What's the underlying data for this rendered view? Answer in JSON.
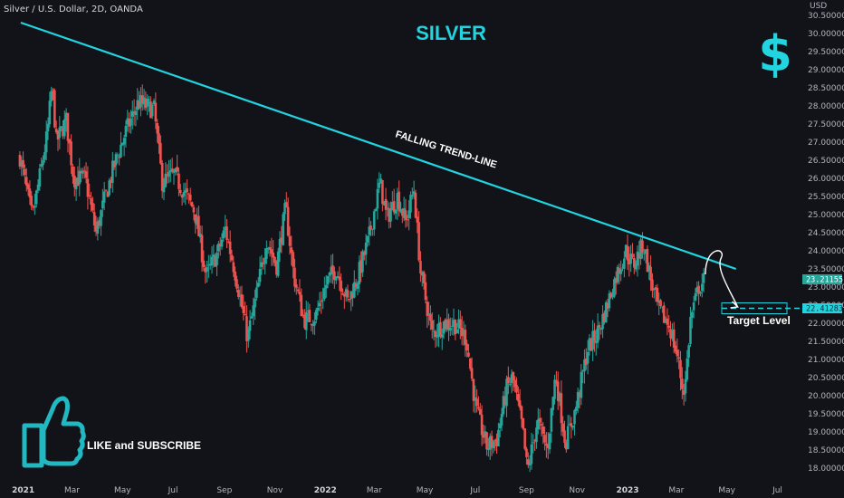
{
  "symbol": "Silver / U.S. Dollar, 2D, OANDA",
  "title": "SILVER",
  "currency_label": "USD",
  "currency_symbol": "$",
  "colors": {
    "background": "#121319",
    "bull": "#26a69a",
    "bear": "#ef5350",
    "trend": "#22d3e0",
    "accent": "#22d3e0"
  },
  "annotations": {
    "trend_line_label": "FALLING TREND-LINE",
    "target_label": "Target Level",
    "promo": "LIKE and SUBSCRIBE",
    "promo_icon": "thumbs-up-icon",
    "forecast_icon": "curved-arrow-icon"
  },
  "price_tags": {
    "current": "23.21155",
    "target": "22.41283"
  },
  "chart_data": {
    "type": "candlestick",
    "title": "SILVER",
    "xlabel": "",
    "ylabel": "USD",
    "ylim": [
      17.9,
      30.6
    ],
    "x_ticks": [
      "2021",
      "Mar",
      "May",
      "Jul",
      "Sep",
      "Nov",
      "2022",
      "Mar",
      "May",
      "Jul",
      "Sep",
      "Nov",
      "2023",
      "Mar",
      "May",
      "Jul"
    ],
    "y_ticks": [
      "18.00000",
      "18.50000",
      "19.00000",
      "19.50000",
      "20.00000",
      "20.50000",
      "21.00000",
      "21.50000",
      "22.00000",
      "22.50000",
      "23.00000",
      "23.50000",
      "24.00000",
      "24.50000",
      "25.00000",
      "25.50000",
      "26.00000",
      "26.50000",
      "27.00000",
      "27.50000",
      "28.00000",
      "28.50000",
      "29.00000",
      "29.50000",
      "30.00000",
      "30.50000"
    ],
    "grid": false,
    "waypoints": [
      [
        "2020-12-28",
        26.6
      ],
      [
        "2021-01-12",
        24.9
      ],
      [
        "2021-01-30",
        27.2
      ],
      [
        "2021-02-05",
        28.6
      ],
      [
        "2021-02-10",
        27.0
      ],
      [
        "2021-02-22",
        27.6
      ],
      [
        "2021-03-03",
        26.0
      ],
      [
        "2021-03-17",
        26.0
      ],
      [
        "2021-03-30",
        24.5
      ],
      [
        "2021-04-08",
        25.3
      ],
      [
        "2021-04-20",
        26.3
      ],
      [
        "2021-05-05",
        27.3
      ],
      [
        "2021-05-20",
        28.1
      ],
      [
        "2021-06-08",
        27.9
      ],
      [
        "2021-06-18",
        25.9
      ],
      [
        "2021-07-02",
        26.1
      ],
      [
        "2021-07-15",
        25.6
      ],
      [
        "2021-07-27",
        25.1
      ],
      [
        "2021-08-10",
        23.3
      ],
      [
        "2021-08-25",
        24.0
      ],
      [
        "2021-09-02",
        24.6
      ],
      [
        "2021-09-15",
        23.3
      ],
      [
        "2021-09-29",
        21.6
      ],
      [
        "2021-10-10",
        22.8
      ],
      [
        "2021-10-22",
        24.3
      ],
      [
        "2021-11-03",
        23.6
      ],
      [
        "2021-11-14",
        25.2
      ],
      [
        "2021-11-24",
        23.3
      ],
      [
        "2021-12-06",
        22.1
      ],
      [
        "2021-12-20",
        22.2
      ],
      [
        "2022-01-04",
        23.2
      ],
      [
        "2022-01-14",
        23.5
      ],
      [
        "2022-01-28",
        22.6
      ],
      [
        "2022-02-08",
        23.2
      ],
      [
        "2022-02-22",
        24.3
      ],
      [
        "2022-03-08",
        25.9
      ],
      [
        "2022-03-16",
        24.9
      ],
      [
        "2022-03-29",
        25.5
      ],
      [
        "2022-04-08",
        24.8
      ],
      [
        "2022-04-18",
        25.7
      ],
      [
        "2022-04-26",
        23.4
      ],
      [
        "2022-05-10",
        21.7
      ],
      [
        "2022-05-24",
        22.0
      ],
      [
        "2022-06-06",
        22.0
      ],
      [
        "2022-06-20",
        21.6
      ],
      [
        "2022-07-02",
        19.6
      ],
      [
        "2022-07-15",
        18.6
      ],
      [
        "2022-07-27",
        18.8
      ],
      [
        "2022-08-08",
        20.2
      ],
      [
        "2022-08-15",
        20.5
      ],
      [
        "2022-08-27",
        19.1
      ],
      [
        "2022-09-02",
        17.9
      ],
      [
        "2022-09-14",
        19.3
      ],
      [
        "2022-09-26",
        18.5
      ],
      [
        "2022-10-06",
        20.6
      ],
      [
        "2022-10-18",
        18.7
      ],
      [
        "2022-10-30",
        19.6
      ],
      [
        "2022-11-14",
        21.3
      ],
      [
        "2022-11-25",
        21.7
      ],
      [
        "2022-12-06",
        22.4
      ],
      [
        "2022-12-18",
        23.3
      ],
      [
        "2022-12-30",
        24.0
      ],
      [
        "2023-01-08",
        23.6
      ],
      [
        "2023-01-20",
        24.2
      ],
      [
        "2023-01-30",
        23.1
      ],
      [
        "2023-02-07",
        22.4
      ],
      [
        "2023-02-21",
        21.9
      ],
      [
        "2023-03-03",
        21.0
      ],
      [
        "2023-03-09",
        20.1
      ],
      [
        "2023-03-12",
        20.4
      ],
      [
        "2023-03-18",
        22.1
      ],
      [
        "2023-03-28",
        23.0
      ],
      [
        "2023-04-04",
        23.2
      ]
    ],
    "trend_line": {
      "start": [
        "2020-12-29",
        30.3
      ],
      "end": [
        "2023-05-12",
        23.5
      ]
    },
    "forecast_path": [
      [
        "2023-04-05",
        23.35
      ],
      [
        "2023-04-24",
        23.8
      ],
      [
        "2023-05-05",
        22.9
      ],
      [
        "2023-05-14",
        22.45
      ]
    ],
    "target_level": 22.41283,
    "current_price": 23.21155
  }
}
